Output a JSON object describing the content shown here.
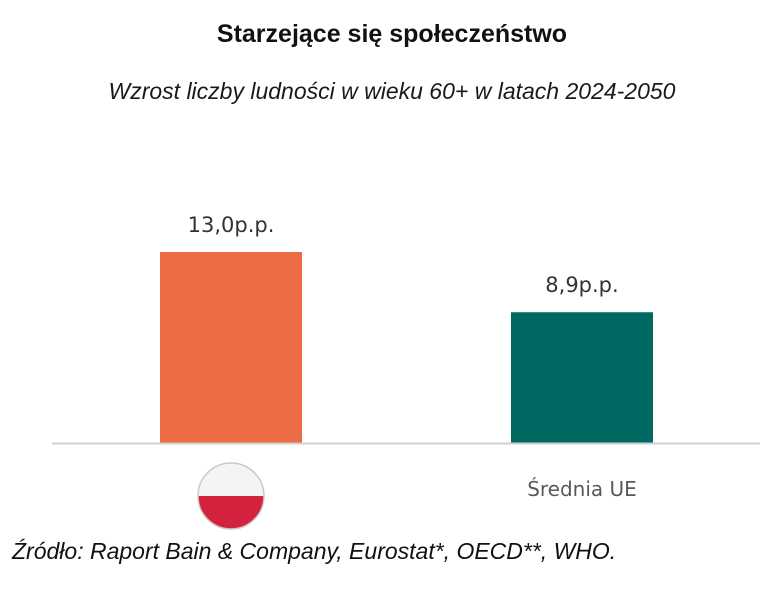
{
  "chart_data": {
    "type": "bar",
    "title": "Starzejące się społeczeństwo",
    "subtitle": "Wzrost liczby ludności w wieku 60+ w latach 2024-2050",
    "categories": [
      "Polska",
      "Średnia UE"
    ],
    "category_labels": [
      "",
      "Średnia UE"
    ],
    "category_icons": [
      "poland-flag-icon",
      ""
    ],
    "values": [
      13.0,
      8.9
    ],
    "value_labels": [
      "13,0p.p.",
      "8,9p.p."
    ],
    "colors": [
      "#ED6C44",
      "#006A62"
    ],
    "ylim": [
      0,
      13.0
    ],
    "grid": false,
    "legend": "none"
  },
  "source": "Źródło: Raport Bain & Company, Eurostat*, OECD**, WHO."
}
